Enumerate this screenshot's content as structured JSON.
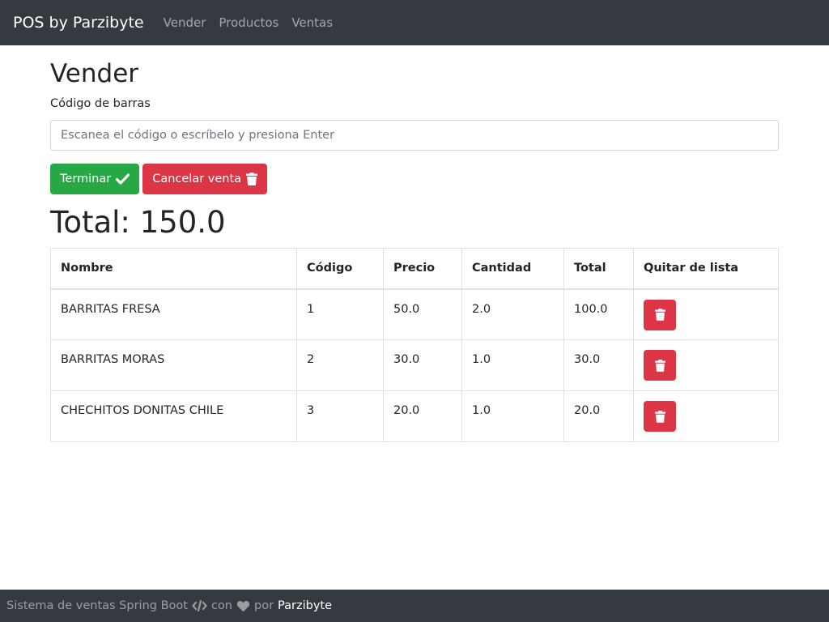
{
  "navbar": {
    "brand": "POS by Parzibyte",
    "links": [
      "Vender",
      "Productos",
      "Ventas"
    ]
  },
  "main": {
    "title": "Vender",
    "barcode_label": "Código de barras",
    "barcode_placeholder": "Escanea el código o escríbelo y presiona Enter",
    "finish_label": "Terminar",
    "cancel_label": "Cancelar venta",
    "total_text": "Total: 150.0"
  },
  "table": {
    "headers": [
      "Nombre",
      "Código",
      "Precio",
      "Cantidad",
      "Total",
      "Quitar de lista"
    ],
    "rows": [
      {
        "nombre": "BARRITAS FRESA",
        "codigo": "1",
        "precio": "50.0",
        "cantidad": "2.0",
        "total": "100.0"
      },
      {
        "nombre": "BARRITAS MORAS",
        "codigo": "2",
        "precio": "30.0",
        "cantidad": "1.0",
        "total": "30.0"
      },
      {
        "nombre": "CHECHITOS DONITAS CHILE",
        "codigo": "3",
        "precio": "20.0",
        "cantidad": "1.0",
        "total": "20.0"
      }
    ]
  },
  "footer": {
    "text1": "Sistema de ventas Spring Boot",
    "text2": "con",
    "text3": "por",
    "link": "Parzibyte"
  },
  "colors": {
    "navbar": "#343a40",
    "success": "#28a745",
    "danger": "#dc3545"
  },
  "icons": {
    "finish": "check-icon",
    "cancel": "trash-icon",
    "remove": "trash-icon",
    "code": "code-icon",
    "heart": "heart-icon"
  }
}
